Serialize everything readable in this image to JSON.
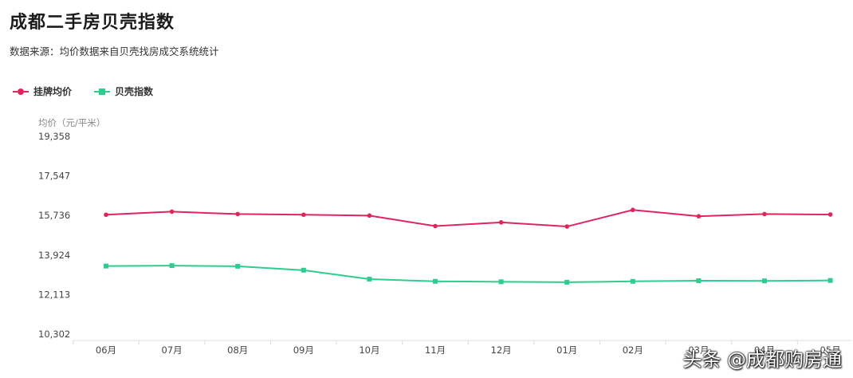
{
  "title": "成都二手房贝壳指数",
  "subtitle": "数据来源：均价数据来自贝壳找房成交系统统计",
  "watermark": "头条 @成都购房通",
  "colors": {
    "listing": "#e0245e",
    "index": "#2ecc8f"
  },
  "legend": [
    {
      "name": "挂牌均价",
      "marker": "circle",
      "color": "#e0245e"
    },
    {
      "name": "贝壳指数",
      "marker": "square",
      "color": "#2ecc8f"
    }
  ],
  "chart_data": {
    "type": "line",
    "ylabel": "均价（元/平米）",
    "ylim": [
      10302,
      19358
    ],
    "yticks": [
      "19,358",
      "17,547",
      "15,736",
      "13,924",
      "12,113",
      "10,302"
    ],
    "categories": [
      "06月",
      "07月",
      "08月",
      "09月",
      "10月",
      "11月",
      "12月",
      "01月",
      "02月",
      "03月",
      "04月",
      "05月"
    ],
    "series": [
      {
        "name": "挂牌均价",
        "values": [
          15770,
          15910,
          15800,
          15770,
          15730,
          15250,
          15420,
          15230,
          15990,
          15700,
          15800,
          15780
        ]
      },
      {
        "name": "贝壳指数",
        "values": [
          13420,
          13440,
          13410,
          13230,
          12820,
          12720,
          12700,
          12680,
          12720,
          12750,
          12740,
          12760
        ]
      }
    ],
    "grid": false,
    "legend_position": "top-left"
  }
}
